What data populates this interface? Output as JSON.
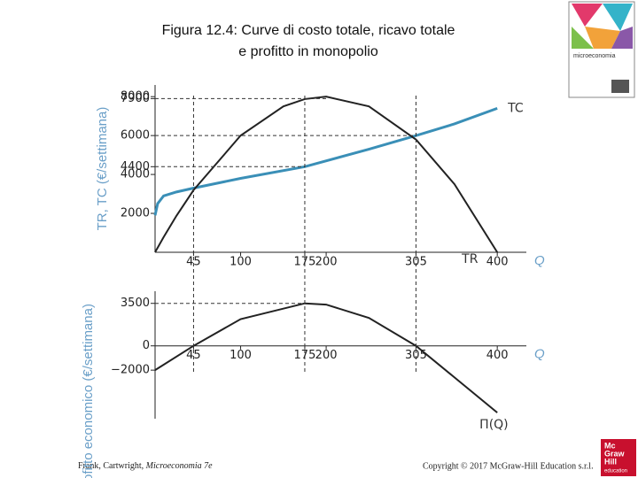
{
  "header": {
    "title_lines": [
      "Figura 12.4: Curve di costo totale, ricavo totale",
      "e profitto in monopolio"
    ]
  },
  "chart_data": [
    {
      "type": "line",
      "y_label": "TR, TC (€/settimana)",
      "x_label": "Q",
      "xlim": [
        0,
        434
      ],
      "xticks": [
        45,
        100,
        175,
        200,
        305,
        400
      ],
      "ylim": [
        0,
        8600
      ],
      "yticks": [
        2000,
        4000,
        4400,
        6000,
        7900,
        8000
      ],
      "series": [
        {
          "name": "TC",
          "color": "#3a8fb7",
          "x": [
            0,
            3,
            10,
            25,
            45,
            100,
            175,
            250,
            305,
            350,
            400
          ],
          "values": [
            1900,
            2500,
            2900,
            3100,
            3300,
            3800,
            4400,
            5300,
            6000,
            6600,
            7400
          ]
        },
        {
          "name": "TR",
          "color": "#222222",
          "x": [
            0,
            10,
            25,
            45,
            100,
            150,
            175,
            200,
            250,
            305,
            350,
            400
          ],
          "values": [
            0,
            780,
            1875,
            3195,
            6000,
            7500,
            7875,
            8000,
            7500,
            5795,
            3500,
            0
          ]
        }
      ]
    },
    {
      "type": "line",
      "y_label": "Profitto economico (€/settimana)",
      "x_label": "Q",
      "xlim": [
        0,
        434
      ],
      "xticks": [
        45,
        100,
        175,
        200,
        305,
        400
      ],
      "ylim": [
        -6000,
        4500
      ],
      "yticks": [
        {
          "value": -2000,
          "label": "−2000"
        },
        0,
        3500
      ],
      "series": [
        {
          "name": "Π(Q)",
          "color": "#222222",
          "x": [
            0,
            45,
            100,
            175,
            200,
            250,
            305,
            350,
            400
          ],
          "values": [
            -2000,
            0,
            2200,
            3500,
            3400,
            2300,
            0,
            -2600,
            -5500
          ]
        }
      ]
    }
  ],
  "footer": {
    "left_prefix": "Frank, Cartwright, ",
    "left_book": "Microeconomia 7e",
    "right": "Copyright © 2017 McGraw-Hill Education s.r.l."
  },
  "cover": {
    "title": "microeconomia"
  },
  "logo": {
    "lines": [
      "Mc",
      "Graw",
      "Hill",
      "education"
    ]
  }
}
